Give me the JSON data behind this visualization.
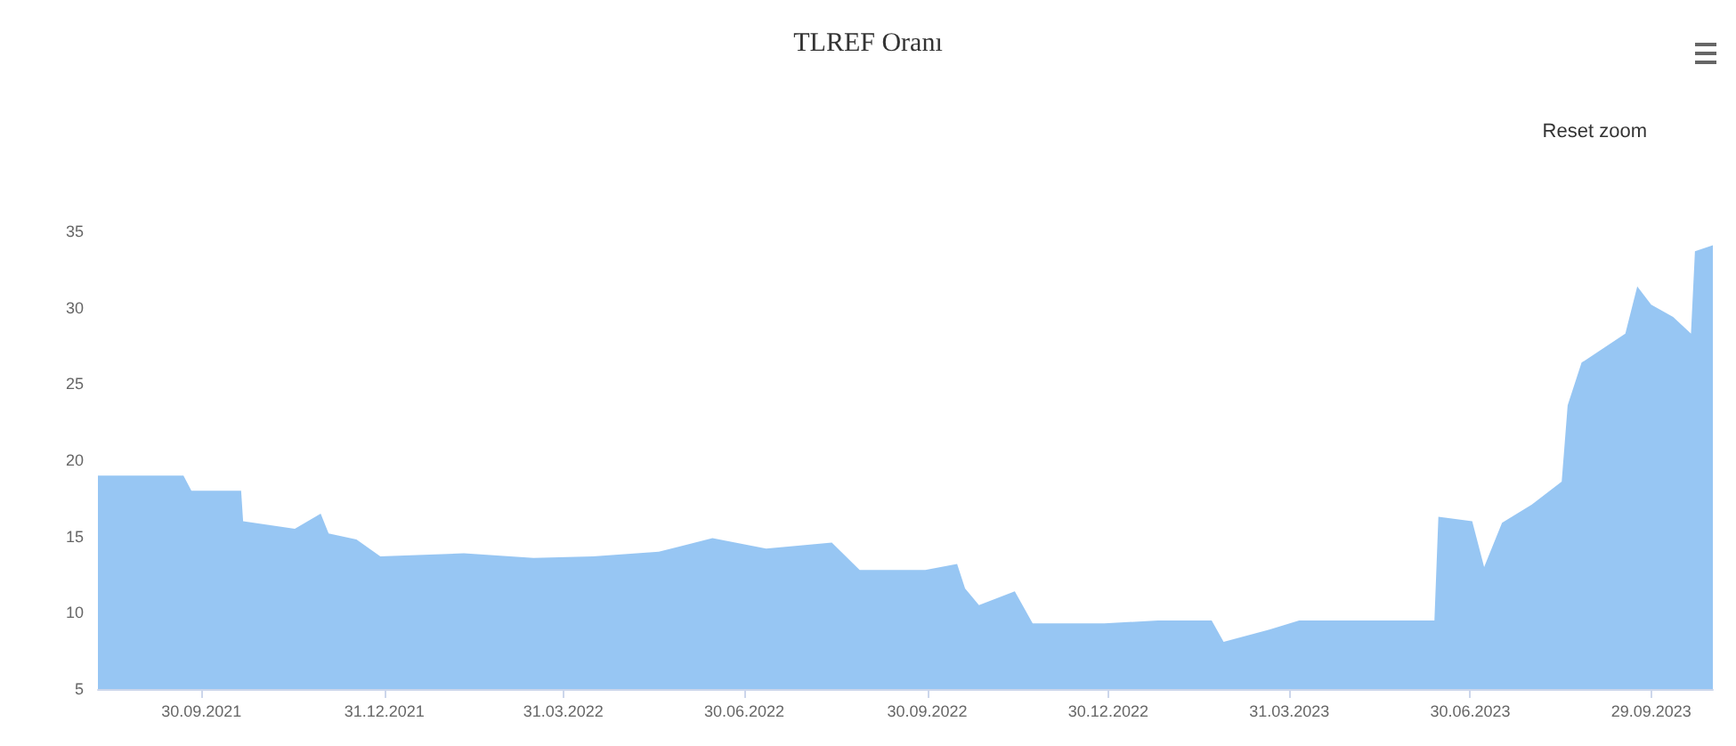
{
  "chart_data": {
    "type": "area",
    "title": "TLREF Oranı",
    "annotations": [
      "Reset zoom"
    ],
    "x": [
      "2021-08-09",
      "2021-09-21",
      "2021-09-25",
      "2021-10-20",
      "2021-10-21",
      "2021-11-16",
      "2021-11-29",
      "2021-12-03",
      "2021-12-17",
      "2021-12-29",
      "2022-02-09",
      "2022-03-16",
      "2022-04-15",
      "2022-05-18",
      "2022-06-14",
      "2022-07-11",
      "2022-08-13",
      "2022-08-27",
      "2022-09-29",
      "2022-10-15",
      "2022-10-19",
      "2022-10-26",
      "2022-11-13",
      "2022-11-22",
      "2022-12-28",
      "2023-01-24",
      "2023-02-20",
      "2023-02-26",
      "2023-03-21",
      "2023-04-05",
      "2023-06-12",
      "2023-06-14",
      "2023-07-01",
      "2023-07-07",
      "2023-07-16",
      "2023-07-31",
      "2023-08-15",
      "2023-08-18",
      "2023-08-25",
      "2023-09-16",
      "2023-09-22",
      "2023-09-29",
      "2023-10-10",
      "2023-10-19",
      "2023-10-21",
      "2023-10-30"
    ],
    "series": [
      {
        "color": "#8cc0f2",
        "values": [
          19.0,
          19.0,
          18.0,
          18.0,
          16.0,
          15.5,
          16.5,
          15.2,
          14.8,
          13.7,
          13.9,
          13.6,
          13.7,
          14.0,
          14.9,
          14.2,
          14.6,
          12.8,
          12.8,
          13.2,
          11.6,
          10.5,
          11.4,
          9.3,
          9.3,
          9.5,
          9.5,
          8.1,
          8.9,
          9.5,
          9.5,
          16.3,
          16.0,
          13.0,
          15.9,
          17.1,
          18.6,
          23.6,
          26.4,
          28.3,
          31.4,
          30.2,
          29.4,
          28.3,
          33.7,
          34.1
        ]
      }
    ],
    "xlim": [
      "2021-08-09",
      "2023-10-30"
    ],
    "xticks": [
      {
        "value": "2021-09-30",
        "label": "30.09.2021"
      },
      {
        "value": "2021-12-31",
        "label": "31.12.2021"
      },
      {
        "value": "2022-03-31",
        "label": "31.03.2022"
      },
      {
        "value": "2022-06-30",
        "label": "30.06.2022"
      },
      {
        "value": "2022-09-30",
        "label": "30.09.2022"
      },
      {
        "value": "2022-12-30",
        "label": "30.12.2022"
      },
      {
        "value": "2023-03-31",
        "label": "31.03.2023"
      },
      {
        "value": "2023-06-30",
        "label": "30.06.2023"
      },
      {
        "value": "2023-09-29",
        "label": "29.09.2023"
      }
    ],
    "ylim": [
      5,
      35
    ],
    "yticks": [
      5,
      10,
      15,
      20,
      25,
      30,
      35
    ],
    "grid": false,
    "marker": "none"
  }
}
